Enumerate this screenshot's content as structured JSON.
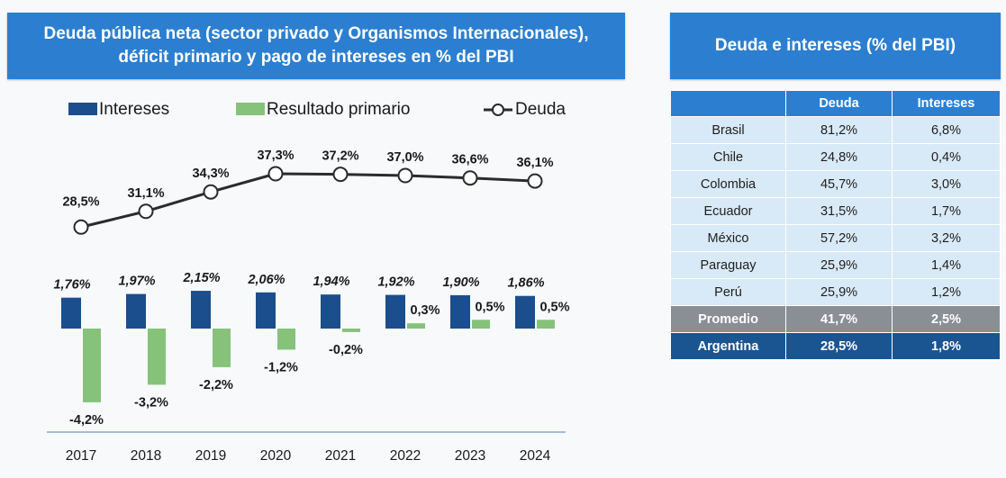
{
  "colors": {
    "banner": "#2c7fd0",
    "intereses": "#1b4e8c",
    "resultado": "#86c27a",
    "deuda_line": "#2b2b2b",
    "axis": "#8aa6cf",
    "table_row": "#d8e9f7",
    "table_avg": "#8a8f96",
    "table_arg": "#1a5592"
  },
  "left_panel": {
    "title_line1": "Deuda pública neta (sector privado y Organismos Internacionales),",
    "title_line2": "déficit primario y pago de intereses en % del PBI"
  },
  "right_panel": {
    "title": "Deuda e intereses (% del PBI)"
  },
  "chart_data": {
    "type": "bar",
    "title": "Deuda pública neta (sector privado y Organismos Internacionales), déficit primario y pago de intereses en % del PBI",
    "categories": [
      "2017",
      "2018",
      "2019",
      "2020",
      "2021",
      "2022",
      "2023",
      "2024"
    ],
    "legend": [
      "Intereses",
      "Resultado primario",
      "Deuda"
    ],
    "legend_position": "top",
    "series": [
      {
        "name": "Intereses",
        "type": "bar",
        "values": [
          1.76,
          1.97,
          2.15,
          2.06,
          1.94,
          1.92,
          1.9,
          1.86
        ],
        "labels": [
          "1,76%",
          "1,97%",
          "2,15%",
          "2,06%",
          "1,94%",
          "1,92%",
          "1,90%",
          "1,86%"
        ]
      },
      {
        "name": "Resultado primario",
        "type": "bar",
        "values": [
          -4.2,
          -3.2,
          -2.2,
          -1.2,
          -0.2,
          0.3,
          0.5,
          0.5
        ],
        "labels": [
          "-4,2%",
          "-3,2%",
          "-2,2%",
          "-1,2%",
          "-0,2%",
          "0,3%",
          "0,5%",
          "0,5%"
        ]
      },
      {
        "name": "Deuda",
        "type": "line",
        "values": [
          28.5,
          31.1,
          34.3,
          37.3,
          37.2,
          37.0,
          36.6,
          36.1
        ],
        "labels": [
          "28,5%",
          "31,1%",
          "34,3%",
          "37,3%",
          "37,2%",
          "37,0%",
          "36,6%",
          "36,1%"
        ]
      }
    ],
    "ylim_bars": [
      -4.5,
      2.5
    ],
    "ylim_line": [
      27,
      38
    ],
    "grid": false,
    "xlabel": "",
    "ylabel": ""
  },
  "table": {
    "headers": [
      "",
      "Deuda",
      "Intereses"
    ],
    "rows": [
      [
        "Brasil",
        "81,2%",
        "6,8%"
      ],
      [
        "Chile",
        "24,8%",
        "0,4%"
      ],
      [
        "Colombia",
        "45,7%",
        "3,0%"
      ],
      [
        "Ecuador",
        "31,5%",
        "1,7%"
      ],
      [
        "México",
        "57,2%",
        "3,2%"
      ],
      [
        "Paraguay",
        "25,9%",
        "1,4%"
      ],
      [
        "Perú",
        "25,9%",
        "1,2%"
      ]
    ],
    "average": [
      "Promedio",
      "41,7%",
      "2,5%"
    ],
    "argentina": [
      "Argentina",
      "28,5%",
      "1,8%"
    ]
  }
}
